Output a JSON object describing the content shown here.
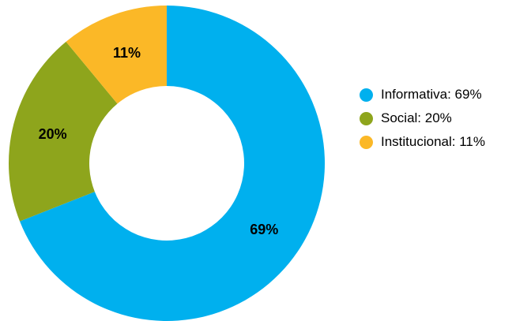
{
  "chart_data": {
    "type": "pie",
    "donut": true,
    "categories": [
      "Informativa",
      "Social",
      "Institucional"
    ],
    "values": [
      69,
      20,
      11
    ],
    "colors": [
      "#00B0EE",
      "#8EA51C",
      "#FBB827"
    ],
    "slice_labels": [
      "69%",
      "20%",
      "11%"
    ],
    "legend_position": "right",
    "legend": [
      "Informativa: 69%",
      "Social: 20%",
      "Institucional: 11%"
    ]
  }
}
